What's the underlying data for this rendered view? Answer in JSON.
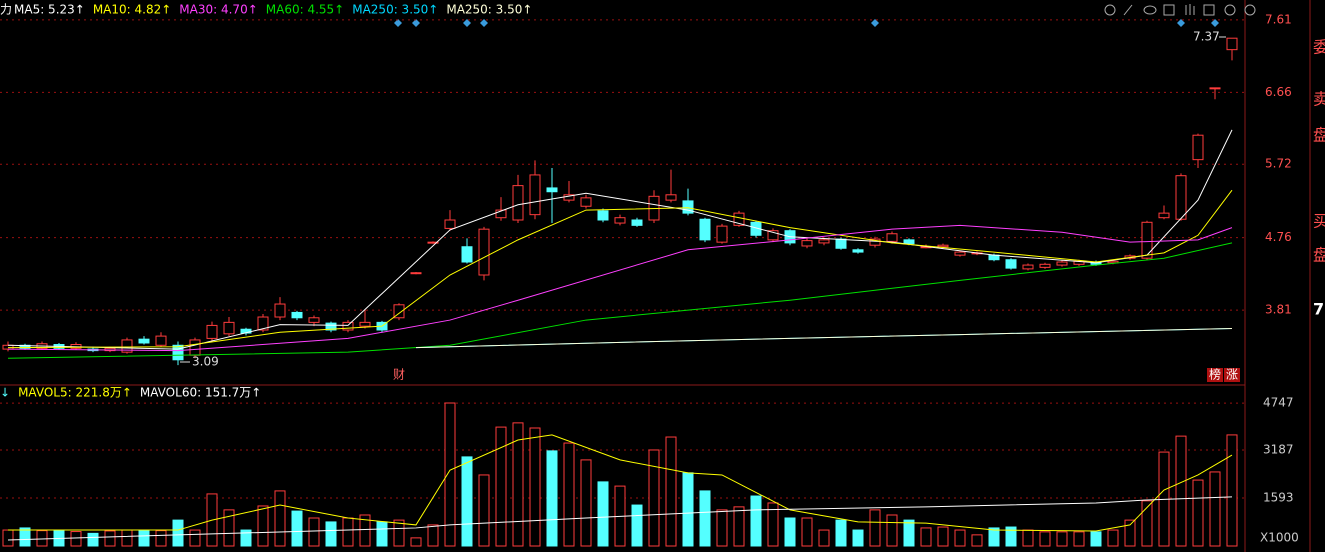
{
  "chart_data": [
    {
      "type": "candlestick",
      "title": "力",
      "indicators": [
        {
          "label": "MA5: 5.23↑",
          "color": "#ffffff",
          "x": [
            0,
            10,
            16,
            20,
            26,
            30,
            34,
            40,
            46,
            52,
            58,
            64,
            67,
            70,
            72
          ],
          "values": [
            3.35,
            3.3,
            3.62,
            3.61,
            4.86,
            5.19,
            5.34,
            5.12,
            4.77,
            4.7,
            4.53,
            4.43,
            4.53,
            5.25,
            6.17
          ]
        },
        {
          "label": "MA10: 4.82↑",
          "color": "#ffff00",
          "x": [
            0,
            10,
            16,
            22,
            26,
            30,
            34,
            40,
            46,
            52,
            58,
            64,
            68,
            70,
            72
          ],
          "values": [
            3.32,
            3.33,
            3.52,
            3.6,
            4.27,
            4.73,
            5.12,
            5.15,
            4.89,
            4.69,
            4.57,
            4.44,
            4.56,
            4.79,
            5.38
          ]
        },
        {
          "label": "MA30: 4.70↑",
          "color": "#ff40ff",
          "x": [
            0,
            10,
            20,
            26,
            30,
            40,
            46,
            52,
            56,
            62,
            66,
            70,
            72
          ],
          "values": [
            3.3,
            3.28,
            3.44,
            3.68,
            3.94,
            4.6,
            4.73,
            4.87,
            4.92,
            4.83,
            4.7,
            4.73,
            4.89
          ]
        },
        {
          "label": "MA60: 4.55↑",
          "color": "#00e000",
          "x": [
            0,
            20,
            26,
            34,
            46,
            56,
            64,
            68,
            72
          ],
          "values": [
            3.18,
            3.26,
            3.35,
            3.68,
            3.94,
            4.2,
            4.4,
            4.49,
            4.69
          ]
        },
        {
          "label": "MA250: 3.50↑",
          "color": "#00d8ff",
          "x": [
            24,
            40,
            56,
            72
          ],
          "values": [
            3.32,
            3.41,
            3.49,
            3.57
          ]
        },
        {
          "label": "MA250: 3.50↑",
          "color": "#ffffd8",
          "x": [
            24,
            40,
            56,
            72
          ],
          "values": [
            3.32,
            3.41,
            3.49,
            3.57
          ]
        }
      ],
      "open": [
        3.3,
        3.35,
        3.31,
        3.36,
        3.31,
        3.3,
        3.28,
        3.26,
        3.43,
        3.35,
        3.35,
        3.22,
        3.44,
        3.5,
        3.56,
        3.55,
        3.72,
        3.78,
        3.65,
        3.64,
        3.55,
        3.6,
        3.65,
        3.71,
        4.29,
        4.69,
        4.88,
        4.64,
        4.27,
        5.02,
        4.99,
        5.06,
        5.41,
        5.25,
        5.17,
        5.11,
        4.95,
        4.99,
        4.99,
        5.25,
        5.24,
        5.0,
        4.7,
        4.92,
        4.96,
        4.73,
        4.85,
        4.65,
        4.69,
        4.74,
        4.6,
        4.66,
        4.71,
        4.73,
        4.64,
        4.64,
        4.53,
        4.55,
        4.53,
        4.47,
        4.35,
        4.37,
        4.4,
        4.41,
        4.44,
        4.43,
        4.49,
        4.49,
        5.02,
        5.0,
        5.78,
        6.71,
        7.22
      ],
      "high": [
        3.4,
        3.37,
        3.4,
        3.38,
        3.39,
        3.33,
        3.33,
        3.45,
        3.47,
        3.52,
        3.4,
        3.45,
        3.66,
        3.72,
        3.58,
        3.76,
        3.98,
        3.8,
        3.74,
        3.66,
        3.68,
        3.82,
        3.67,
        3.9,
        4.31,
        4.71,
        5.12,
        4.75,
        4.9,
        5.29,
        5.58,
        5.77,
        5.67,
        5.5,
        5.32,
        5.14,
        5.06,
        5.02,
        5.38,
        5.65,
        5.4,
        5.02,
        4.94,
        5.11,
        4.98,
        4.88,
        4.87,
        4.75,
        4.76,
        4.76,
        4.62,
        4.77,
        4.84,
        4.75,
        4.67,
        4.68,
        4.59,
        4.58,
        4.55,
        4.49,
        4.42,
        4.43,
        4.46,
        4.47,
        4.46,
        4.47,
        4.54,
        4.98,
        5.18,
        5.6,
        6.12,
        6.72,
        7.37
      ],
      "low": [
        3.27,
        3.29,
        3.29,
        3.29,
        3.29,
        3.26,
        3.26,
        3.24,
        3.36,
        3.33,
        3.09,
        3.18,
        3.4,
        3.47,
        3.48,
        3.52,
        3.68,
        3.68,
        3.6,
        3.52,
        3.52,
        3.57,
        3.52,
        3.68,
        4.28,
        4.68,
        4.85,
        4.42,
        4.2,
        4.98,
        4.95,
        5.0,
        4.95,
        5.22,
        5.14,
        4.96,
        4.92,
        4.9,
        4.95,
        5.22,
        5.05,
        4.7,
        4.68,
        4.9,
        4.76,
        4.7,
        4.66,
        4.62,
        4.66,
        4.6,
        4.55,
        4.63,
        4.68,
        4.66,
        4.62,
        4.62,
        4.51,
        4.53,
        4.45,
        4.34,
        4.33,
        4.35,
        4.38,
        4.39,
        4.39,
        4.41,
        4.47,
        4.47,
        5.0,
        4.98,
        5.67,
        6.57,
        7.08
      ],
      "close": [
        3.35,
        3.31,
        3.37,
        3.31,
        3.36,
        3.28,
        3.31,
        3.42,
        3.38,
        3.47,
        3.16,
        3.42,
        3.61,
        3.65,
        3.51,
        3.72,
        3.89,
        3.71,
        3.71,
        3.55,
        3.65,
        3.65,
        3.55,
        3.88,
        4.3,
        4.7,
        4.99,
        4.44,
        4.87,
        5.12,
        5.44,
        5.58,
        5.36,
        5.32,
        5.28,
        4.99,
        5.02,
        4.92,
        5.3,
        5.32,
        5.08,
        4.73,
        4.91,
        5.08,
        4.79,
        4.85,
        4.69,
        4.72,
        4.73,
        4.62,
        4.57,
        4.74,
        4.81,
        4.68,
        4.64,
        4.66,
        4.57,
        4.56,
        4.47,
        4.36,
        4.4,
        4.41,
        4.44,
        4.45,
        4.41,
        4.45,
        4.52,
        4.96,
        5.08,
        5.57,
        6.1,
        6.72,
        7.37
      ],
      "up_color": "#ff3c3c",
      "down_color": "#54ffff",
      "ylim": [
        2.83,
        7.87
      ],
      "yticks": [
        3.81,
        4.76,
        5.72,
        6.66,
        7.61
      ],
      "grid": true,
      "annotations": [
        "7.37",
        "3.09"
      ],
      "event_labels": [
        "财",
        "榜",
        "涨"
      ]
    },
    {
      "type": "bar",
      "indicators": [
        {
          "label": "↓",
          "color": "#54ffff"
        },
        {
          "label": "MAVOL5: 221.8万↑",
          "color": "#ffff00",
          "x": [
            0,
            10,
            12,
            16,
            20,
            24,
            26,
            30,
            32,
            36,
            40,
            42,
            46,
            50,
            54,
            58,
            64,
            66,
            68,
            70,
            72
          ],
          "values": [
            530,
            530,
            860,
            1360,
            930,
            700,
            2520,
            3520,
            3690,
            2860,
            2430,
            2360,
            1200,
            800,
            760,
            530,
            500,
            700,
            1860,
            2360,
            3020
          ]
        },
        {
          "label": "MAVOL60: 151.7万↑",
          "color": "#ffffff",
          "x": [
            0,
            10,
            20,
            24,
            26,
            34,
            44,
            54,
            64,
            67,
            72
          ],
          "values": [
            200,
            370,
            530,
            600,
            700,
            930,
            1200,
            1300,
            1430,
            1530,
            1630
          ]
        }
      ],
      "values": [
        530,
        600,
        510,
        530,
        480,
        420,
        500,
        530,
        510,
        510,
        860,
        530,
        1730,
        1200,
        530,
        1330,
        1830,
        1160,
        930,
        800,
        930,
        1030,
        800,
        860,
        270,
        700,
        4750,
        2960,
        2360,
        3950,
        4090,
        3920,
        3160,
        3420,
        2860,
        2130,
        1990,
        1360,
        3190,
        3620,
        2430,
        1830,
        1200,
        1300,
        1660,
        1430,
        930,
        930,
        530,
        860,
        530,
        1200,
        1030,
        860,
        600,
        630,
        530,
        370,
        600,
        630,
        530,
        470,
        470,
        470,
        470,
        530,
        860,
        1500,
        3120,
        3650,
        2190,
        2460,
        3690
      ],
      "ylim": [
        0,
        5016
      ],
      "yticks": [
        1593,
        3187,
        4747
      ],
      "y_unit_label": "X1000",
      "grid": true
    }
  ],
  "sidebar": [
    "委",
    "卖",
    "盘",
    "买",
    "盘",
    "7."
  ]
}
